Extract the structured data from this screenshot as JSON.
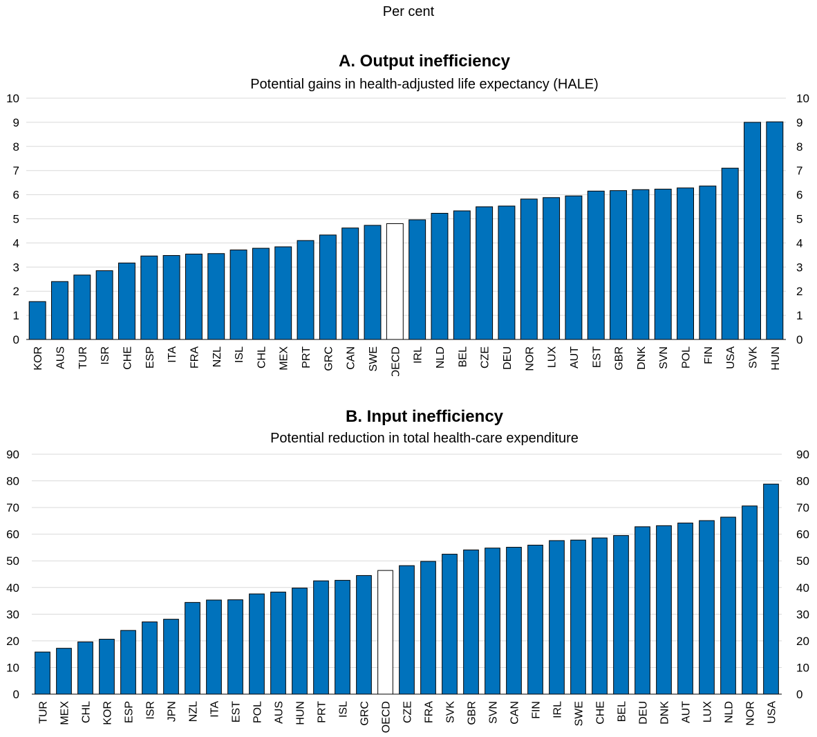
{
  "figure": {
    "subtitle": "Per cent"
  },
  "chart_data": [
    {
      "type": "bar",
      "title": "A. Output inefficiency",
      "subtitle": "Potential gains in health-adjusted life expectancy (HALE)",
      "xlabel": "",
      "ylabel": "",
      "ylim": [
        0,
        10
      ],
      "yticks": [
        0,
        1,
        2,
        3,
        4,
        5,
        6,
        7,
        8,
        9,
        10
      ],
      "grid": true,
      "bar_color": "#0072BC",
      "highlight_color": "#FFFFFF",
      "highlight_category": "OECD",
      "categories": [
        "KOR",
        "AUS",
        "TUR",
        "ISR",
        "CHE",
        "ESP",
        "ITA",
        "FRA",
        "NZL",
        "ISL",
        "CHL",
        "MEX",
        "PRT",
        "GRC",
        "CAN",
        "SWE",
        "OECD",
        "IRL",
        "NLD",
        "BEL",
        "CZE",
        "DEU",
        "NOR",
        "LUX",
        "AUT",
        "EST",
        "GBR",
        "DNK",
        "SVN",
        "POL",
        "FIN",
        "USA",
        "SVK",
        "HUN"
      ],
      "values": [
        1.57,
        2.4,
        2.67,
        2.85,
        3.17,
        3.46,
        3.48,
        3.54,
        3.56,
        3.71,
        3.78,
        3.84,
        4.1,
        4.33,
        4.62,
        4.73,
        4.8,
        4.96,
        5.23,
        5.33,
        5.5,
        5.53,
        5.82,
        5.88,
        5.95,
        6.15,
        6.17,
        6.21,
        6.23,
        6.28,
        6.36,
        7.1,
        9.0,
        9.02
      ]
    },
    {
      "type": "bar",
      "title": "B. Input inefficiency",
      "subtitle": "Potential reduction in total health-care expenditure",
      "xlabel": "",
      "ylabel": "",
      "ylim": [
        0,
        90
      ],
      "yticks": [
        0,
        10,
        20,
        30,
        40,
        50,
        60,
        70,
        80,
        90
      ],
      "grid": true,
      "bar_color": "#0072BC",
      "highlight_color": "#FFFFFF",
      "highlight_category": "OECD",
      "categories": [
        "TUR",
        "MEX",
        "CHL",
        "KOR",
        "ESP",
        "ISR",
        "JPN",
        "NZL",
        "ITA",
        "EST",
        "POL",
        "AUS",
        "HUN",
        "PRT",
        "ISL",
        "GRC",
        "OECD",
        "CZE",
        "FRA",
        "SVK",
        "GBR",
        "SVN",
        "CAN",
        "FIN",
        "IRL",
        "SWE",
        "CHE",
        "BEL",
        "DEU",
        "DNK",
        "AUT",
        "LUX",
        "NLD",
        "NOR",
        "USA"
      ],
      "values": [
        15.8,
        17.2,
        19.6,
        20.6,
        23.9,
        27.1,
        28.1,
        34.4,
        35.3,
        35.4,
        37.6,
        38.3,
        39.8,
        42.5,
        42.7,
        44.5,
        46.4,
        48.2,
        49.8,
        52.5,
        54.1,
        54.8,
        55.1,
        55.9,
        57.6,
        57.8,
        58.6,
        59.5,
        62.8,
        63.2,
        64.2,
        65.1,
        66.4,
        70.6,
        78.8
      ]
    }
  ]
}
